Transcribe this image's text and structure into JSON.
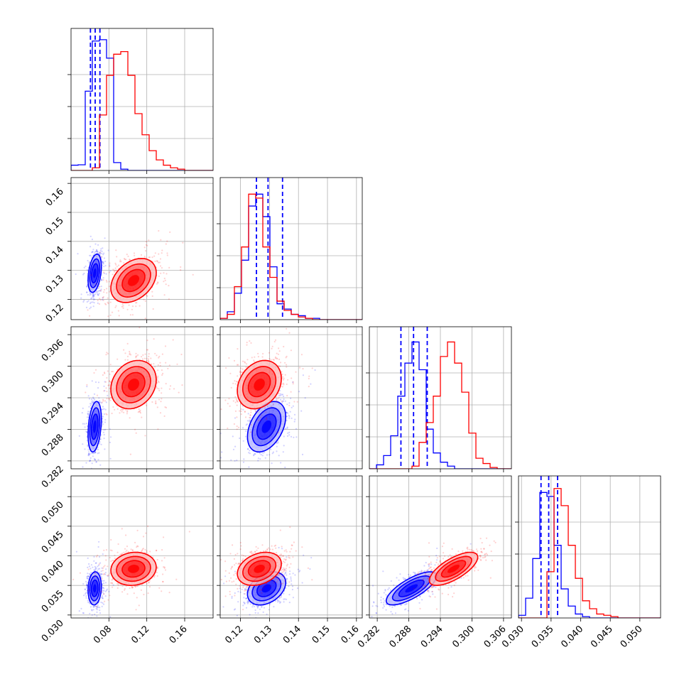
{
  "chart_data": {
    "type": "scatter",
    "subtype": "corner-plot",
    "grid": true,
    "parameters": [
      {
        "range": [
          0.04,
          0.19
        ],
        "ticks": [
          0.08,
          0.12,
          0.16
        ],
        "tick_labels": [
          "0.08",
          "0.12",
          "0.16"
        ]
      },
      {
        "range": [
          0.113,
          0.162
        ],
        "ticks": [
          0.12,
          0.13,
          0.14,
          0.15,
          0.16
        ],
        "tick_labels": [
          "0.12",
          "0.13",
          "0.14",
          "0.15",
          "0.16"
        ]
      },
      {
        "range": [
          0.2805,
          0.3075
        ],
        "ticks": [
          0.282,
          0.288,
          0.294,
          0.3,
          0.306
        ],
        "tick_labels": [
          "0.282",
          "0.288",
          "0.294",
          "0.300",
          "0.306"
        ]
      },
      {
        "range": [
          0.0295,
          0.0535
        ],
        "ticks": [
          0.03,
          0.035,
          0.04,
          0.045,
          0.05
        ],
        "tick_labels": [
          "0.030",
          "0.035",
          "0.040",
          "0.045",
          "0.050"
        ]
      }
    ],
    "series": [
      {
        "color": "#0000ff",
        "mean": [
          0.065,
          0.129,
          0.2885,
          0.0345
        ],
        "std": [
          0.0035,
          0.0033,
          0.0024,
          0.0014
        ],
        "corr": {
          "0-1": 0.35,
          "0-2": 0.3,
          "0-3": 0.1,
          "1-2": 0.4,
          "1-3": 0.35,
          "2-3": 0.75
        },
        "quantiles": [
          [
            0.0605,
            0.0655,
            0.0705
          ],
          [
            0.1255,
            0.1295,
            0.1345
          ],
          [
            0.2865,
            0.2889,
            0.2915
          ],
          [
            0.0333,
            0.0346,
            0.0361
          ]
        ],
        "hist": [
          [
            0.04,
            0.043,
            0.6,
            0.98,
            0.99,
            0.85,
            0.06,
            0.01,
            0,
            0,
            0,
            0,
            0,
            0,
            0,
            0,
            0,
            0,
            0,
            0
          ],
          [
            0.01,
            0.06,
            0.2,
            0.45,
            0.86,
            0.95,
            0.78,
            0.4,
            0.12,
            0.08,
            0.04,
            0.03,
            0.01,
            0.01,
            0,
            0,
            0,
            0,
            0,
            0
          ],
          [
            0,
            0.03,
            0.1,
            0.25,
            0.55,
            0.8,
            0.96,
            0.75,
            0.3,
            0.12,
            0.05,
            0.02,
            0,
            0,
            0,
            0,
            0,
            0,
            0,
            0
          ],
          [
            0.02,
            0.15,
            0.45,
            0.95,
            0.92,
            0.55,
            0.22,
            0.09,
            0.03,
            0.01,
            0,
            0,
            0,
            0,
            0,
            0,
            0,
            0,
            0,
            0
          ]
        ]
      },
      {
        "color": "#ff0000",
        "mean": [
          0.106,
          0.1265,
          0.2965,
          0.0378
        ],
        "std": [
          0.012,
          0.0038,
          0.0023,
          0.0014
        ],
        "corr": {
          "0-1": 0.35,
          "0-2": 0.2,
          "0-3": 0.1,
          "1-2": 0.25,
          "1-3": 0.3,
          "2-3": 0.7
        },
        "quantiles": [],
        "hist": [
          [
            0,
            0,
            0,
            0.02,
            0.42,
            0.72,
            0.88,
            0.9,
            0.72,
            0.43,
            0.27,
            0.15,
            0.08,
            0.04,
            0.02,
            0.01,
            0,
            0,
            0,
            0
          ],
          [
            0.01,
            0.04,
            0.25,
            0.55,
            0.95,
            0.92,
            0.55,
            0.32,
            0.14,
            0.07,
            0.04,
            0.02,
            0.01,
            0,
            0,
            0,
            0,
            0,
            0,
            0
          ],
          [
            0,
            0,
            0,
            0,
            0,
            0,
            0.02,
            0.2,
            0.35,
            0.55,
            0.85,
            0.96,
            0.8,
            0.58,
            0.27,
            0.08,
            0.04,
            0.01,
            0,
            0
          ],
          [
            0,
            0,
            0,
            0,
            0.35,
            0.98,
            0.85,
            0.55,
            0.3,
            0.13,
            0.07,
            0.03,
            0.02,
            0.01,
            0,
            0,
            0,
            0,
            0,
            0
          ]
        ]
      }
    ]
  }
}
